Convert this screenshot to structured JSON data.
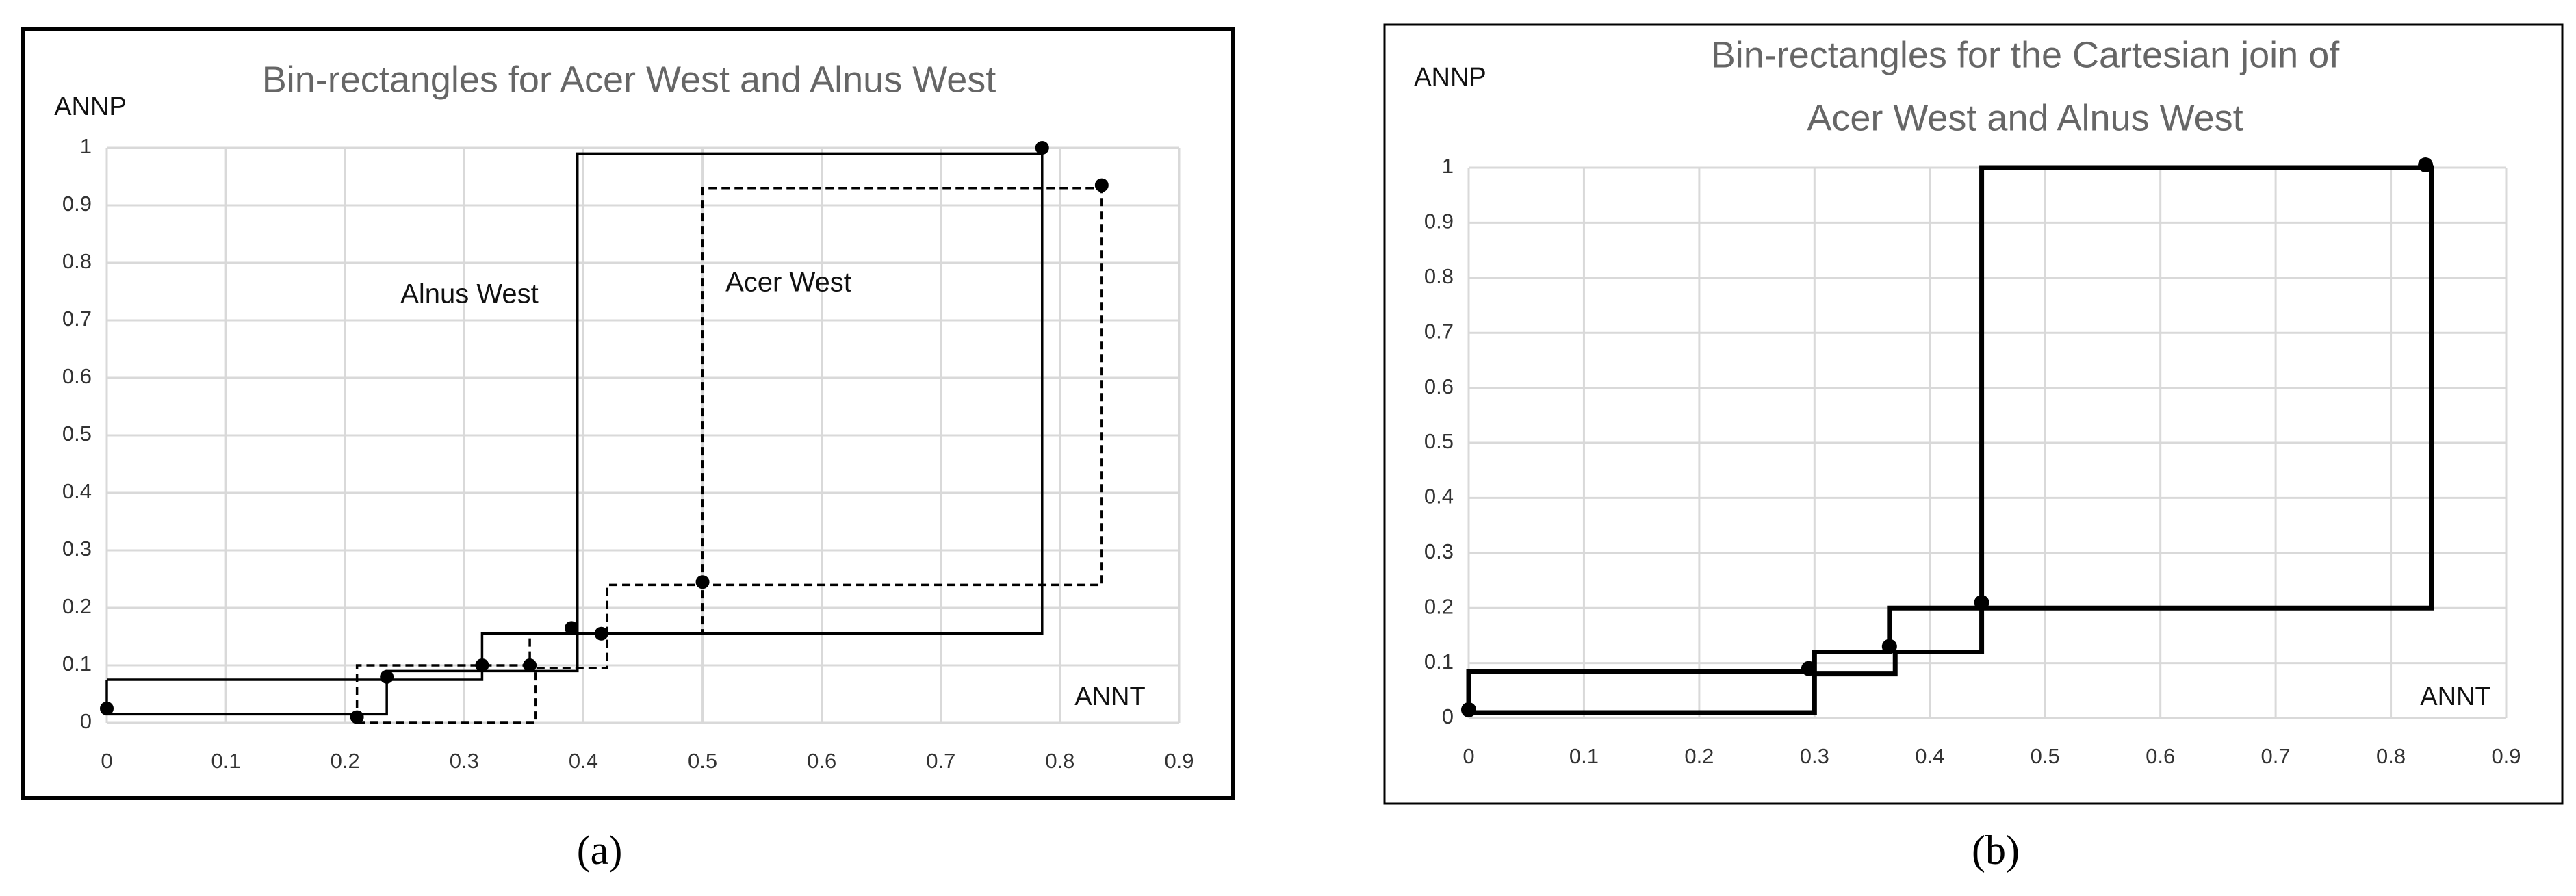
{
  "chart_data": [
    {
      "type": "line",
      "title": "Bin-rectangles for Acer West and Alnus West",
      "y_label": "ANNP",
      "x_label": "ANNT",
      "annotations": [
        "Alnus West",
        "Acer West"
      ],
      "caption": "(a)",
      "xlim": [
        0,
        0.9
      ],
      "xticks": [
        0,
        0.1,
        0.2,
        0.3,
        0.4,
        0.5,
        0.6,
        0.7,
        0.8,
        0.9
      ],
      "ylim": [
        0,
        1
      ],
      "yticks": [
        0,
        0.1,
        0.2,
        0.3,
        0.4,
        0.5,
        0.6,
        0.7,
        0.8,
        0.9,
        1
      ],
      "grid": true,
      "series": [
        {
          "mode": "lines",
          "style": "solid",
          "color": "#000000",
          "x": [
            0,
            0,
            0.235,
            0.235,
            0.395,
            0.395,
            0.785,
            0.785,
            0.315,
            0.315,
            0
          ],
          "y": [
            0.075,
            0.015,
            0.015,
            0.09,
            0.09,
            0.99,
            0.99,
            0.155,
            0.155,
            0.075,
            0.075
          ]
        },
        {
          "mode": "markers",
          "color": "#000000",
          "x": [
            0,
            0.235,
            0.315,
            0.39,
            0.785
          ],
          "y": [
            0.025,
            0.08,
            0.1,
            0.165,
            1
          ]
        },
        {
          "mode": "lines",
          "style": "dashed",
          "color": "#000000",
          "x": [
            0.21,
            0.36,
            0.36,
            0.42,
            0.42,
            0.835,
            0.835,
            0.5,
            0.5,
            0.355,
            0.355,
            0.21,
            0.21
          ],
          "y": [
            0,
            0,
            0.095,
            0.095,
            0.24,
            0.24,
            0.93,
            0.93,
            0.155,
            0.155,
            0.1,
            0.1,
            0
          ]
        },
        {
          "mode": "markers",
          "color": "#000000",
          "x": [
            0.21,
            0.355,
            0.415,
            0.5,
            0.835
          ],
          "y": [
            0.01,
            0.1,
            0.155,
            0.245,
            0.935
          ]
        }
      ]
    },
    {
      "type": "line",
      "title": [
        "Bin-rectangles for the Cartesian join of",
        "Acer West and Alnus West"
      ],
      "y_label": "ANNP",
      "x_label": "ANNT",
      "caption": "(b)",
      "xlim": [
        0,
        0.9
      ],
      "xticks": [
        0,
        0.1,
        0.2,
        0.3,
        0.4,
        0.5,
        0.6,
        0.7,
        0.8,
        0.9
      ],
      "ylim": [
        0,
        1
      ],
      "yticks": [
        0,
        0.1,
        0.2,
        0.3,
        0.4,
        0.5,
        0.6,
        0.7,
        0.8,
        0.9,
        1
      ],
      "grid": true,
      "series": [
        {
          "mode": "lines",
          "style": "solid",
          "color": "#000000",
          "x": [
            0,
            0.3,
            0.3,
            0.37,
            0.37,
            0.445,
            0.445,
            0.835,
            0.835,
            0.365,
            0.365,
            0.3,
            0.3,
            0,
            0
          ],
          "y": [
            0.01,
            0.01,
            0.08,
            0.08,
            0.12,
            0.12,
            1,
            1,
            0.2,
            0.2,
            0.12,
            0.12,
            0.085,
            0.085,
            0.01
          ]
        },
        {
          "mode": "markers",
          "color": "#000000",
          "x": [
            0,
            0.295,
            0.365,
            0.445,
            0.83
          ],
          "y": [
            0.015,
            0.09,
            0.13,
            0.21,
            1.005
          ]
        }
      ]
    }
  ]
}
